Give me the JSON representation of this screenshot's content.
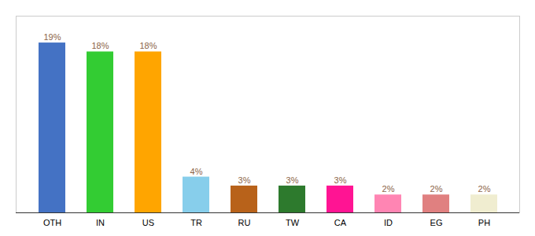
{
  "chart_data": {
    "type": "bar",
    "categories": [
      "OTH",
      "IN",
      "US",
      "TR",
      "RU",
      "TW",
      "CA",
      "ID",
      "EG",
      "PH"
    ],
    "values": [
      19,
      18,
      18,
      4,
      3,
      3,
      3,
      2,
      2,
      2
    ],
    "value_labels": [
      "19%",
      "18%",
      "18%",
      "4%",
      "3%",
      "3%",
      "3%",
      "2%",
      "2%",
      "2%"
    ],
    "colors": [
      "#4472C4",
      "#33CC33",
      "#FFA500",
      "#87CEEB",
      "#B8621A",
      "#2D7A2D",
      "#FF1493",
      "#FF85B3",
      "#E08080",
      "#F0EDD0"
    ],
    "ylim": [
      0,
      22
    ],
    "data_labels": true,
    "tick_labels": "x",
    "grid": false
  }
}
